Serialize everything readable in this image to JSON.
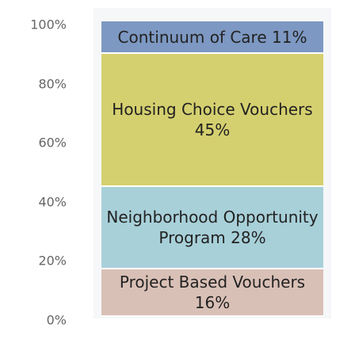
{
  "chart_data": {
    "type": "stacked_bar",
    "categories": [
      null
    ],
    "series": [
      {
        "name": "Project Based Vouchers",
        "color": "#d9c0b6",
        "values": [
          16
        ],
        "value_labels": [
          "16%"
        ]
      },
      {
        "name": "Neighborhood Opportunity Program",
        "color": "#a8d0d9",
        "values": [
          28
        ],
        "value_labels": [
          "28%"
        ]
      },
      {
        "name": "Housing Choice Vouchers",
        "color": "#d5d06f",
        "values": [
          45
        ],
        "value_labels": [
          "45%"
        ]
      },
      {
        "name": "Continuum of Care",
        "color": "#7d98c2",
        "values": [
          11
        ],
        "value_labels": [
          "11%"
        ]
      }
    ],
    "ylim": [
      0,
      100
    ],
    "yticks": [
      {
        "value": 0,
        "label": "0%"
      },
      {
        "value": 20,
        "label": "20%"
      },
      {
        "value": 40,
        "label": "40%"
      },
      {
        "value": 60,
        "label": "60%"
      },
      {
        "value": 80,
        "label": "80%"
      },
      {
        "value": 100,
        "label": "100%"
      }
    ]
  }
}
